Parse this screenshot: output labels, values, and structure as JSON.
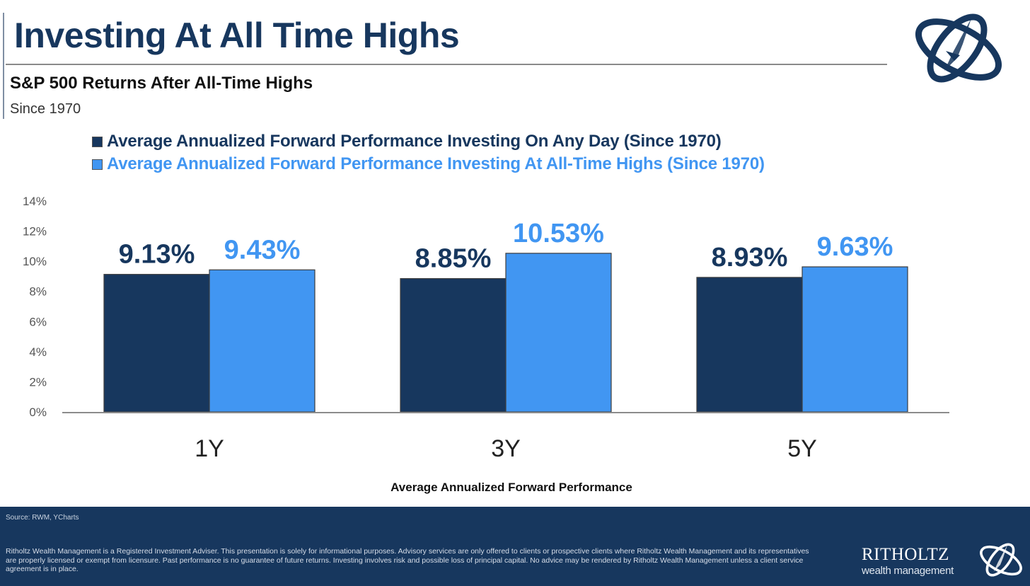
{
  "header": {
    "title": "Investing At All Time Highs",
    "subtitle": "S&P 500 Returns After All-Time Highs",
    "since": "Since 1970"
  },
  "colors": {
    "navy": "#17375e",
    "blue": "#4196f2",
    "title": "#17375e"
  },
  "chart_data": {
    "type": "bar",
    "title": "S&P 500 Returns After All-Time Highs",
    "xlabel": "Average Annualized Forward Performance",
    "ylabel": "",
    "categories": [
      "1Y",
      "3Y",
      "5Y"
    ],
    "series": [
      {
        "name": "Average Annualized Forward Performance Investing On Any Day (Since 1970)",
        "color": "#17375e",
        "values": [
          9.13,
          8.85,
          8.93
        ],
        "labels": [
          "9.13%",
          "8.85%",
          "8.93%"
        ]
      },
      {
        "name": "Average Annualized Forward Performance Investing At All-Time Highs (Since 1970)",
        "color": "#4196f2",
        "values": [
          9.43,
          10.53,
          9.63
        ],
        "labels": [
          "9.43%",
          "10.53%",
          "9.63%"
        ]
      }
    ],
    "ylim": [
      0,
      14
    ],
    "yticks": [
      0,
      2,
      4,
      6,
      8,
      10,
      12,
      14
    ],
    "ytick_labels": [
      "0%",
      "2%",
      "4%",
      "6%",
      "8%",
      "10%",
      "12%",
      "14%"
    ],
    "grid": false,
    "legend": "top-left"
  },
  "footer": {
    "source": "Source: RWM, YCharts",
    "disclaimer": "Ritholtz Wealth Management is a Registered Investment Adviser. This presentation is solely for informational purposes. Advisory services are only offered to clients or prospective clients where Ritholtz Wealth Management and its representatives are properly licensed or exempt from licensure. Past performance is no guarantee of future returns. Investing involves risk and possible loss of principal capital. No advice may be rendered by Ritholtz Wealth Management unless a client service agreement is in place.",
    "brand_name": "RITHOLTZ",
    "brand_sub": "wealth management"
  }
}
